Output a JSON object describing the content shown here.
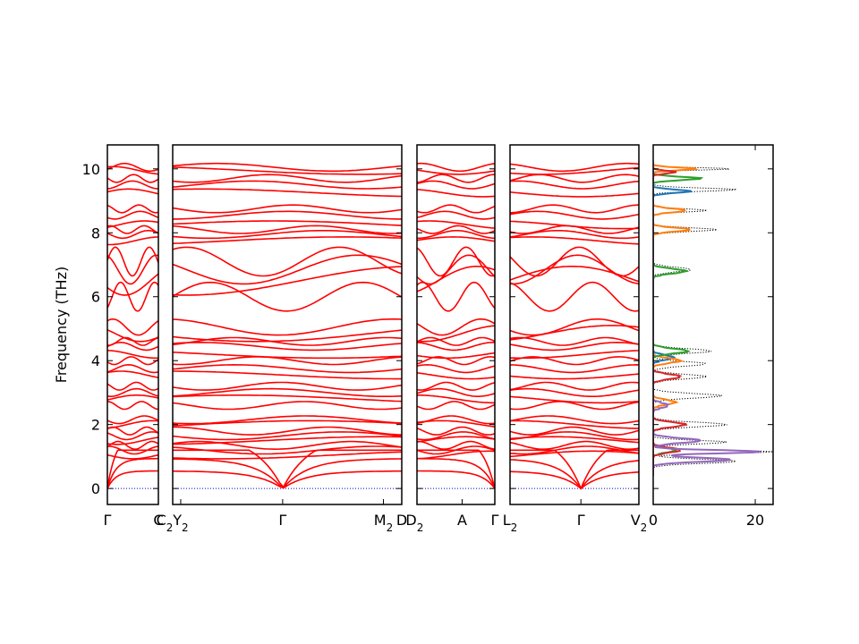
{
  "chart_data": {
    "type": "line",
    "ylabel": "Frequency (THz)",
    "ylim": [
      -0.5,
      10.75
    ],
    "yticks": [
      "0",
      "2",
      "4",
      "6",
      "8",
      "10"
    ],
    "band_color": "#ff0000",
    "zero_line_color": "#0000cd",
    "panels": [
      {
        "ticks": [
          {
            "label": "Γ",
            "sub": "",
            "pos": 0.0
          },
          {
            "label": "C",
            "sub": "",
            "pos": 1.0
          }
        ]
      },
      {
        "ticks": [
          {
            "label": "C",
            "sub": "2",
            "pos": -0.035
          },
          {
            "label": "Y",
            "sub": "2",
            "pos": 0.035
          },
          {
            "label": "Γ",
            "sub": "",
            "pos": 0.48
          },
          {
            "label": "M",
            "sub": "2",
            "pos": 0.92
          },
          {
            "label": "D",
            "sub": "",
            "pos": 1.0
          }
        ]
      },
      {
        "ticks": [
          {
            "label": "D",
            "sub": "2",
            "pos": -0.03
          },
          {
            "label": "A",
            "sub": "",
            "pos": 0.58
          },
          {
            "label": "Γ",
            "sub": "",
            "pos": 1.0
          }
        ]
      },
      {
        "ticks": [
          {
            "label": "L",
            "sub": "2",
            "pos": 0.0
          },
          {
            "label": "Γ",
            "sub": "",
            "pos": 0.55
          },
          {
            "label": "V",
            "sub": "2",
            "pos": 1.0
          }
        ]
      }
    ],
    "band_levels": [
      1.05,
      1.2,
      1.35,
      1.5,
      1.65,
      1.8,
      2.0,
      2.15,
      2.6,
      2.8,
      3.0,
      3.2,
      3.55,
      3.75,
      4.0,
      4.2,
      4.45,
      4.6,
      4.85,
      5.05,
      6.0,
      6.5,
      6.85,
      7.1,
      7.75,
      7.95,
      8.1,
      8.25,
      8.55,
      8.75,
      9.25,
      9.5,
      9.7,
      9.95,
      10.05
    ],
    "dos": {
      "xlim": [
        0,
        23.5
      ],
      "xticks": [
        "0",
        "20"
      ],
      "total_color": "#000000",
      "series": [
        {
          "color": "#1f77b4",
          "peaks": [
            [
              9.3,
              7.0,
              0.07
            ],
            [
              4.1,
              3.5,
              0.1
            ],
            [
              1.2,
              4.0,
              0.1
            ]
          ]
        },
        {
          "color": "#ff7f0e",
          "peaks": [
            [
              10.0,
              8.0,
              0.06
            ],
            [
              8.7,
              6.0,
              0.08
            ],
            [
              8.1,
              7.0,
              0.08
            ],
            [
              4.0,
              5.0,
              0.1
            ],
            [
              2.7,
              4.0,
              0.1
            ]
          ]
        },
        {
          "color": "#2ca02c",
          "peaks": [
            [
              9.7,
              9.0,
              0.07
            ],
            [
              6.8,
              6.0,
              0.1
            ],
            [
              4.3,
              6.5,
              0.1
            ],
            [
              1.2,
              4.0,
              0.1
            ]
          ]
        },
        {
          "color": "#d62728",
          "peaks": [
            [
              9.9,
              4.0,
              0.06
            ],
            [
              3.5,
              5.0,
              0.1
            ],
            [
              2.0,
              6.0,
              0.1
            ],
            [
              1.2,
              5.0,
              0.1
            ]
          ]
        },
        {
          "color": "#9467bd",
          "peaks": [
            [
              1.15,
              21.0,
              0.07
            ],
            [
              0.9,
              15.0,
              0.09
            ],
            [
              1.5,
              9.0,
              0.1
            ],
            [
              2.6,
              2.5,
              0.1
            ]
          ]
        }
      ],
      "total_peaks": [
        [
          10.0,
          15.0,
          0.05
        ],
        [
          9.35,
          16.0,
          0.07
        ],
        [
          8.7,
          10.0,
          0.07
        ],
        [
          8.1,
          12.0,
          0.08
        ],
        [
          6.85,
          7.0,
          0.1
        ],
        [
          4.3,
          11.0,
          0.1
        ],
        [
          3.9,
          10.0,
          0.1
        ],
        [
          3.5,
          10.0,
          0.1
        ],
        [
          2.9,
          13.0,
          0.1
        ],
        [
          2.0,
          14.0,
          0.1
        ],
        [
          1.45,
          14.0,
          0.08
        ],
        [
          1.15,
          23.0,
          0.07
        ],
        [
          0.85,
          16.0,
          0.09
        ]
      ]
    }
  }
}
